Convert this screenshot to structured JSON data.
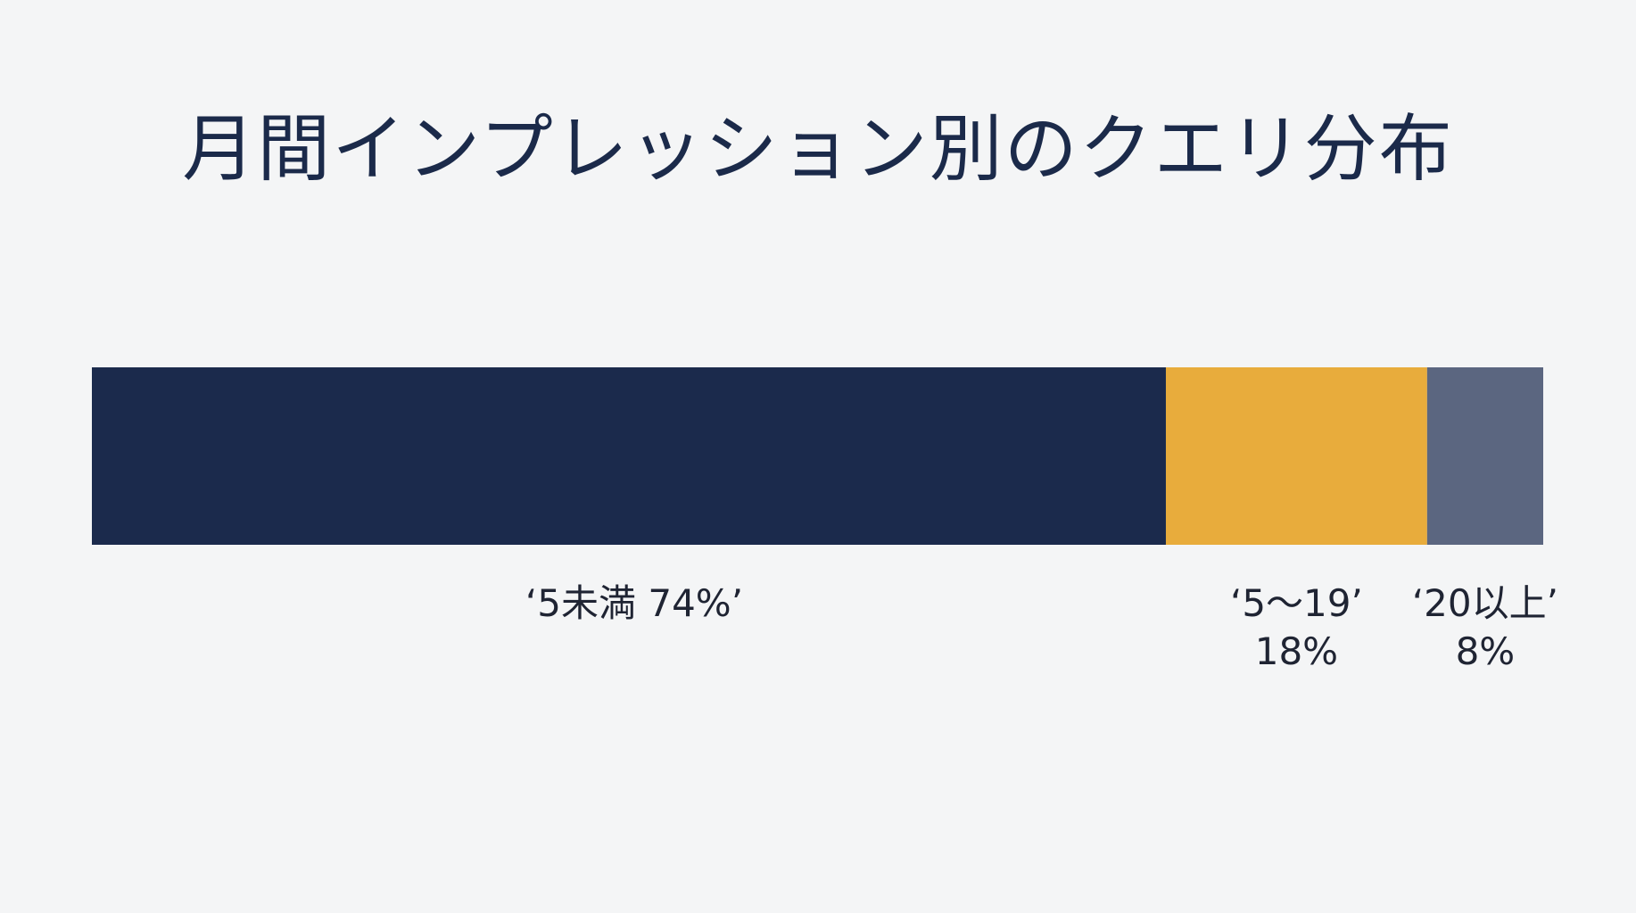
{
  "chart_data": {
    "type": "bar",
    "orientation": "horizontal-stacked",
    "title": "月間インプレッション別のクエリ分布",
    "xlabel": "",
    "ylabel": "",
    "unit": "%",
    "xlim": [
      0,
      100
    ],
    "grid": false,
    "legend": "none",
    "series": [
      {
        "category": "5未満",
        "value": 74,
        "color": "#1b2a4c",
        "label_lines": [
          "‘5未満 74%’"
        ]
      },
      {
        "category": "5〜19",
        "value": 18,
        "color": "#e8ac3c",
        "label_lines": [
          "‘5〜19’",
          "18%"
        ]
      },
      {
        "category": "20以上",
        "value": 8,
        "color": "#5b6680",
        "label_lines": [
          "‘20以上’",
          "8%"
        ]
      }
    ]
  }
}
